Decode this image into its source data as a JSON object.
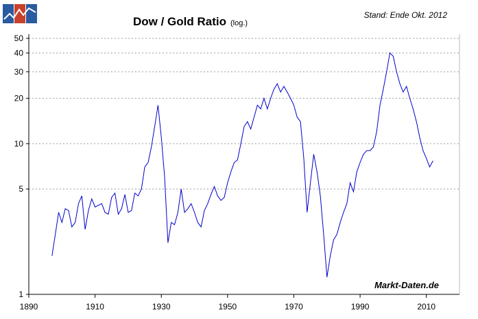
{
  "chart_data": {
    "type": "line",
    "title": "Dow / Gold Ratio",
    "title_note": "(log.)",
    "subtitle": "Stand: Ende Okt. 2012",
    "watermark": "Markt-Daten.de",
    "log_scale": true,
    "grid": true,
    "xlim": [
      1890,
      2020
    ],
    "xticks": [
      1890,
      1910,
      1930,
      1950,
      1970,
      1990,
      2010
    ],
    "ylim": [
      1,
      50
    ],
    "yticks": [
      1,
      5,
      10,
      20,
      30,
      40,
      50
    ],
    "series": [
      {
        "name": "Dow / Gold Ratio",
        "color": "#0000cc",
        "x": [
          1897,
          1898,
          1899,
          1900,
          1901,
          1902,
          1903,
          1904,
          1905,
          1906,
          1907,
          1908,
          1909,
          1910,
          1911,
          1912,
          1913,
          1914,
          1915,
          1916,
          1917,
          1918,
          1919,
          1920,
          1921,
          1922,
          1923,
          1924,
          1925,
          1926,
          1927,
          1928,
          1929,
          1930,
          1931,
          1932,
          1933,
          1934,
          1935,
          1936,
          1937,
          1938,
          1939,
          1940,
          1941,
          1942,
          1943,
          1944,
          1945,
          1946,
          1947,
          1948,
          1949,
          1950,
          1951,
          1952,
          1953,
          1954,
          1955,
          1956,
          1957,
          1958,
          1959,
          1960,
          1961,
          1962,
          1963,
          1964,
          1965,
          1966,
          1967,
          1968,
          1969,
          1970,
          1971,
          1972,
          1973,
          1974,
          1975,
          1976,
          1977,
          1978,
          1979,
          1980,
          1981,
          1982,
          1983,
          1984,
          1985,
          1986,
          1987,
          1988,
          1989,
          1990,
          1991,
          1992,
          1993,
          1994,
          1995,
          1996,
          1997,
          1998,
          1999,
          2000,
          2001,
          2002,
          2003,
          2004,
          2005,
          2006,
          2007,
          2008,
          2009,
          2010,
          2011,
          2012
        ],
        "values": [
          1.8,
          2.5,
          3.5,
          3.0,
          3.7,
          3.6,
          2.8,
          3.0,
          4.0,
          4.5,
          2.7,
          3.6,
          4.3,
          3.8,
          3.9,
          4.0,
          3.5,
          3.4,
          4.4,
          4.7,
          3.4,
          3.7,
          4.6,
          3.5,
          3.6,
          4.7,
          4.5,
          5.0,
          7.0,
          7.5,
          9.5,
          13,
          18,
          11,
          6,
          2.2,
          3.0,
          2.9,
          3.5,
          5.0,
          3.5,
          3.7,
          4.0,
          3.5,
          3.0,
          2.8,
          3.6,
          4.0,
          4.6,
          5.2,
          4.5,
          4.2,
          4.4,
          5.5,
          6.5,
          7.5,
          7.8,
          10,
          13,
          14,
          12.5,
          15,
          18,
          17,
          20,
          17,
          20,
          23,
          25,
          22,
          24,
          22,
          20,
          18,
          15,
          14,
          8,
          3.5,
          5.5,
          8.5,
          6.5,
          4.5,
          2.5,
          1.3,
          1.8,
          2.3,
          2.5,
          3.0,
          3.5,
          4.0,
          5.5,
          4.8,
          6.5,
          7.5,
          8.5,
          9.0,
          9.0,
          9.5,
          12,
          18,
          23,
          30,
          40,
          38,
          30,
          25,
          22,
          24,
          20,
          17,
          14,
          11,
          9,
          8,
          7,
          7.7
        ]
      }
    ]
  }
}
